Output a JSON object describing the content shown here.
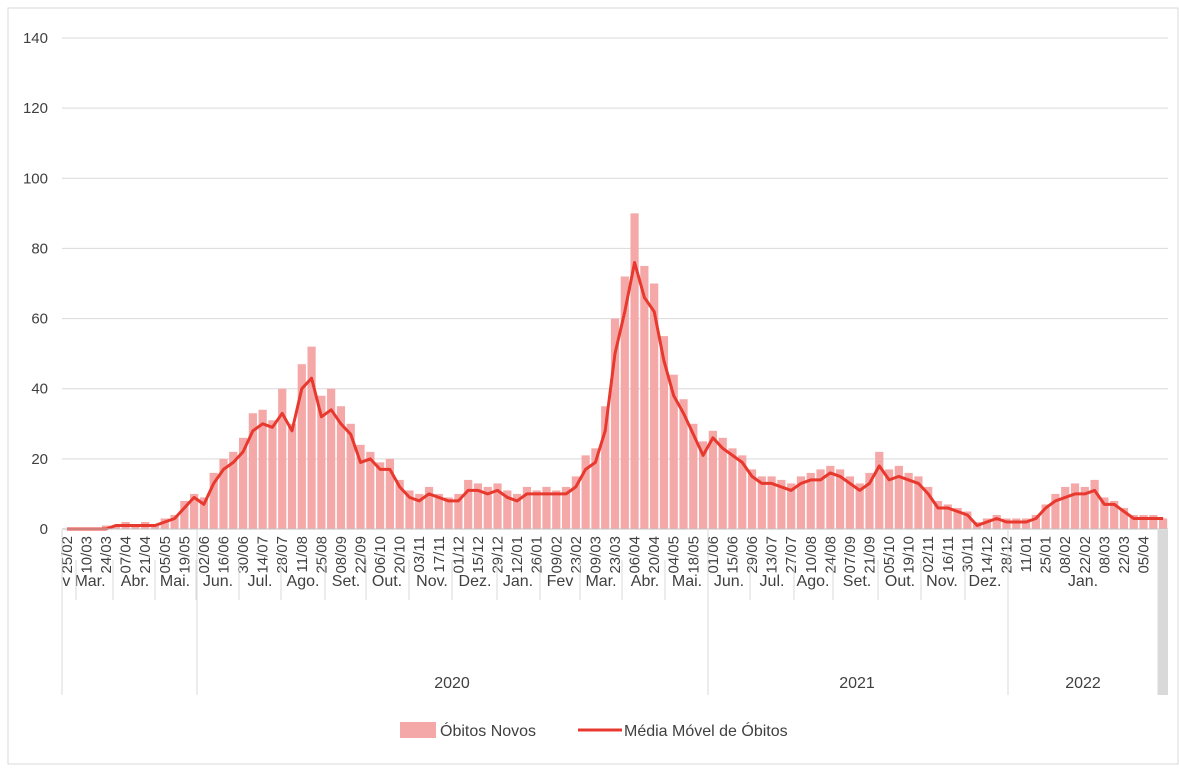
{
  "chart_data": {
    "type": "bar+line",
    "categories": [
      "25/02",
      null,
      "10/03",
      null,
      "24/03",
      null,
      "07/04",
      null,
      "21/04",
      null,
      "05/05",
      null,
      "19/05",
      null,
      "02/06",
      null,
      "16/06",
      null,
      "30/06",
      null,
      "14/07",
      null,
      "28/07",
      null,
      "11/08",
      null,
      "25/08",
      null,
      "08/09",
      null,
      "22/09",
      null,
      "06/10",
      null,
      "20/10",
      null,
      "03/11",
      null,
      "17/11",
      null,
      "01/12",
      null,
      "15/12",
      null,
      "29/12",
      null,
      "12/01",
      null,
      "26/01",
      null,
      "09/02",
      null,
      "23/02",
      null,
      "09/03",
      null,
      "23/03",
      null,
      "06/04",
      null,
      "20/04",
      null,
      "04/05",
      null,
      "18/05",
      null,
      "01/06",
      null,
      "15/06",
      null,
      "29/06",
      null,
      "13/07",
      null,
      "27/07",
      null,
      "10/08",
      null,
      "24/08",
      null,
      "07/09",
      null,
      "21/09",
      null,
      "05/10",
      null,
      "19/10",
      null,
      "02/11",
      null,
      "16/11",
      null,
      "30/11",
      null,
      "14/12",
      null,
      "28/12",
      null,
      "11/01",
      null,
      "25/01",
      null,
      "08/02",
      null,
      "22/02",
      null,
      "08/03",
      null,
      "22/03",
      null,
      "05/04",
      null,
      null
    ],
    "month_labels": [
      "Fev",
      "Mar.",
      "Abr.",
      "Mai.",
      "Jun.",
      "Jul.",
      "Ago.",
      "Set.",
      "Out.",
      "Nov.",
      "Dez.",
      "Jan.",
      "Fev",
      "Mar.",
      "Abr.",
      "Mai.",
      "Jun.",
      "Jul.",
      "Ago.",
      "Set.",
      "Out.",
      "Nov.",
      "Dez.",
      "Jan."
    ],
    "year_labels": [
      "2020",
      "2021",
      "2022"
    ],
    "series": [
      {
        "name": "Óbitos Novos",
        "type": "bar",
        "color": "#f4a9a8",
        "values": [
          0,
          0,
          0,
          0,
          1,
          1,
          2,
          1,
          2,
          1,
          3,
          4,
          8,
          10,
          9,
          16,
          20,
          22,
          26,
          33,
          34,
          31,
          40,
          30,
          47,
          52,
          38,
          40,
          35,
          30,
          24,
          22,
          19,
          20,
          14,
          11,
          10,
          12,
          10,
          9,
          10,
          14,
          13,
          12,
          13,
          11,
          10,
          12,
          11,
          12,
          11,
          12,
          15,
          21,
          23,
          35,
          60,
          72,
          90,
          75,
          70,
          55,
          44,
          37,
          30,
          25,
          28,
          26,
          23,
          21,
          17,
          15,
          15,
          14,
          13,
          15,
          16,
          17,
          18,
          17,
          15,
          13,
          16,
          22,
          17,
          18,
          16,
          15,
          12,
          8,
          7,
          6,
          5,
          2,
          3,
          4,
          3,
          3,
          3,
          4,
          7,
          10,
          12,
          13,
          12,
          14,
          9,
          8,
          6,
          4,
          4,
          4,
          3
        ]
      },
      {
        "name": "Média Móvel de Óbitos",
        "type": "line",
        "color": "#e8392f",
        "values": [
          0,
          0,
          0,
          0,
          0,
          1,
          1,
          1,
          1,
          1,
          2,
          3,
          6,
          9,
          7,
          13,
          17,
          19,
          22,
          28,
          30,
          29,
          33,
          28,
          40,
          43,
          32,
          34,
          30,
          27,
          19,
          20,
          17,
          17,
          12,
          9,
          8,
          10,
          9,
          8,
          8,
          11,
          11,
          10,
          11,
          9,
          8,
          10,
          10,
          10,
          10,
          10,
          12,
          17,
          19,
          28,
          50,
          62,
          76,
          66,
          62,
          48,
          38,
          33,
          27,
          21,
          26,
          23,
          21,
          19,
          15,
          13,
          13,
          12,
          11,
          13,
          14,
          14,
          16,
          15,
          13,
          11,
          13,
          18,
          14,
          15,
          14,
          13,
          10,
          6,
          6,
          5,
          4,
          1,
          2,
          3,
          2,
          2,
          2,
          3,
          6,
          8,
          9,
          10,
          10,
          11,
          7,
          7,
          5,
          3,
          3,
          3,
          3
        ]
      }
    ],
    "ylim": [
      0,
      140
    ],
    "yticks": [
      0,
      20,
      40,
      60,
      80,
      100,
      120,
      140
    ],
    "grid": true,
    "legend": "bottom"
  }
}
